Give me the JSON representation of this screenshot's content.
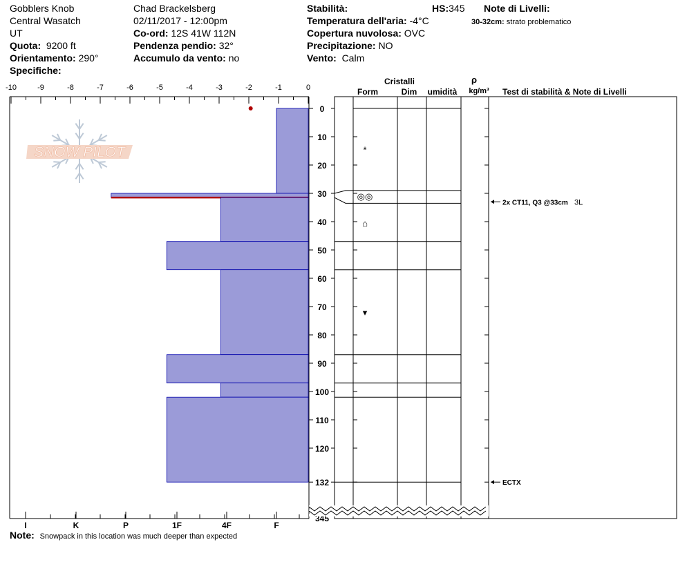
{
  "header": {
    "col1": {
      "location": "Gobblers Knob",
      "range": "Central Wasatch",
      "state": "UT",
      "elevation_label": "Quota:",
      "elevation_value": "9200 ft",
      "aspect_label": "Orientamento:",
      "aspect_value": "290°",
      "specifics_label": "Specifiche:"
    },
    "col2": {
      "observer": "Chad Brackelsberg",
      "datetime": "02/11/2017 - 12:00pm",
      "coord_label": "Co-ord:",
      "coord_value": "12S 41W 112N",
      "slope_label": "Pendenza pendio:",
      "slope_value": "32°",
      "wind_loading_label": "Accumulo da vento:",
      "wind_loading_value": "no"
    },
    "col3": {
      "stability_label": "Stabilità:",
      "air_temp_label": "Temperatura dell'aria:",
      "air_temp_value": "-4°C",
      "cloud_label": "Copertura nuvolosa:",
      "cloud_value": "OVC",
      "precip_label": "Precipitazione:",
      "precip_value": "NO",
      "wind_label": "Vento:",
      "wind_value": "Calm"
    },
    "col4": {
      "hs_label": "HS:",
      "hs_value": "345"
    },
    "col5": {
      "layer_notes_label": "Note di Livelli:",
      "layer_note_range": "30-32cm:",
      "layer_note_text": "strato problematico"
    }
  },
  "logo_text": "SNOW PILOT",
  "columns": {
    "crystals": "Cristalli",
    "form": "Form",
    "dim": "Dim",
    "humidity": "umidità",
    "rho": "ρ",
    "density_unit": "kg/m³",
    "tests": "Test di stabilità & Note di Livelli"
  },
  "footer": {
    "note_label": "Note:",
    "note_text": "Snowpack in this location was much deeper than expected"
  },
  "chart_data": {
    "type": "snow_profile",
    "temperature_axis": {
      "ticks": [
        "-10",
        "-9",
        "-8",
        "-7",
        "-6",
        "-5",
        "-4",
        "-3",
        "-2",
        "-1",
        "0"
      ],
      "range": [
        -10,
        0
      ]
    },
    "hardness_axis": {
      "ticks": [
        "I",
        "K",
        "P",
        "1F",
        "4F",
        "F"
      ]
    },
    "depth_axis": {
      "ticks": [
        "0",
        "10",
        "20",
        "30",
        "40",
        "50",
        "60",
        "70",
        "80",
        "90",
        "100",
        "110",
        "120",
        "132",
        "345"
      ],
      "range_cm": [
        0,
        132
      ],
      "total_hs": 345
    },
    "snow_temperatures": [
      {
        "depth": 0,
        "temp": -1
      }
    ],
    "layers": [
      {
        "top": 0,
        "bottom": 30,
        "hardness_index": 1.0
      },
      {
        "top": 30,
        "bottom": 31.5,
        "hardness_index": 6.2,
        "problem": true
      },
      {
        "top": 31.5,
        "bottom": 47,
        "hardness_index": 2.75
      },
      {
        "top": 47,
        "bottom": 57,
        "hardness_index": 4.45
      },
      {
        "top": 57,
        "bottom": 87,
        "hardness_index": 2.75
      },
      {
        "top": 87,
        "bottom": 97,
        "hardness_index": 4.45
      },
      {
        "top": 97,
        "bottom": 102,
        "hardness_index": 2.75
      },
      {
        "top": 102,
        "bottom": 132,
        "hardness_index": 4.45
      }
    ],
    "grid_boundaries_cm": [
      0,
      29,
      33.5,
      47,
      57,
      87,
      97,
      102,
      132
    ],
    "grain_forms": [
      {
        "depth": 14.5,
        "symbol": "*"
      },
      {
        "depth": 31,
        "symbol": "◎◎"
      },
      {
        "depth": 40.5,
        "symbol": "⌂"
      },
      {
        "depth": 72,
        "symbol": "▾"
      }
    ],
    "tests": [
      {
        "depth": 33,
        "text": "2x CT11, Q3 @33cm",
        "extra": "3L"
      },
      {
        "depth": 132,
        "text": "ECTX",
        "extra": ""
      }
    ]
  }
}
